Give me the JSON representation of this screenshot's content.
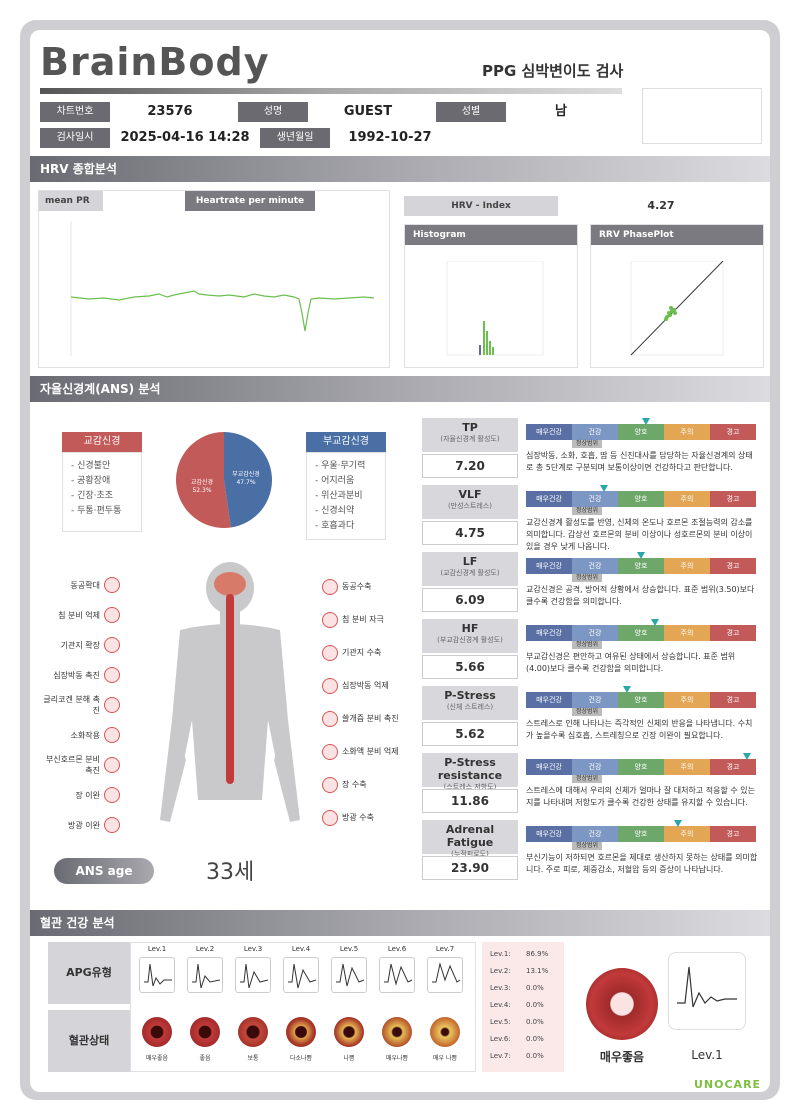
{
  "header": {
    "logo": "BrainBody",
    "title": "PPG 심박변이도 검사",
    "chart_no_label": "차트번호",
    "chart_no": "23576",
    "name_label": "성명",
    "name": "GUEST",
    "gender_label": "성별",
    "gender": "남",
    "date_label": "검사일시",
    "date": "2025-04-16 14:28",
    "birth_label": "생년월일",
    "birth": "1992-10-27"
  },
  "hrv": {
    "section": "HRV 종합분석",
    "mean_pr": "mean PR",
    "hr_per_min": "Heartrate per minute",
    "index_label": "HRV - Index",
    "index_value": "4.27",
    "histogram": "Histogram",
    "phaseplot": "RRV PhasePlot"
  },
  "ans": {
    "section": "자율신경계(ANS) 분석",
    "sym_label": "교감신경",
    "sym_items": [
      "- 신경불안",
      "- 공황장애",
      "- 긴장·초조",
      "- 두통·편두통"
    ],
    "para_label": "부교감신경",
    "para_items": [
      "- 우울·무기력",
      "- 어지러움",
      "- 위산과분비",
      "- 신경쇠약",
      "- 호흡과다"
    ],
    "pie": {
      "sym_name": "교감신경",
      "sym_pct": "52.3%",
      "para_name": "부교감신경",
      "para_pct": "47.7%",
      "sym_value": 52.3,
      "para_value": 47.7
    },
    "left_organs": [
      "동공확대",
      "침 분비 억제",
      "기관지 확장",
      "심장박동 촉진",
      "글리코겐 분해 촉진",
      "소화작용",
      "부신호르몬 분비 촉진",
      "장 이완",
      "방광 이완"
    ],
    "right_organs": [
      "동공수축",
      "침 분비 자극",
      "기관지 수축",
      "심장박동 억제",
      "쓸개즙 분비 촉진",
      "소화액 분비 억제",
      "장 수축",
      "방광 수축"
    ],
    "age_label": "ANS age",
    "age_value": "33세"
  },
  "scale_labels": [
    "매우건강",
    "건강",
    "양호",
    "주의",
    "경고"
  ],
  "normal_tag": "정상범위",
  "metrics": [
    {
      "name": "TP",
      "sub": "(자율신경계 활성도)",
      "value": "7.20",
      "marker": 0.52,
      "desc": "심장박동, 소화, 호흡, 땀 등 신진대사를 담당하는 자율신경계의 상태로 총 5단계로 구분되며 보통이상이면 건강하다고 판단합니다."
    },
    {
      "name": "VLF",
      "sub": "(만성스트레스)",
      "value": "4.75",
      "marker": 0.34,
      "desc": "교감신경계 활성도를 반영, 신체의 온도나 호르몬 조절능력의 감소를 의미합니다. 갑상선 호르몬의 분비 이상이나 성호르몬의 분비 이상이 있을 경우 낮게 나옵니다."
    },
    {
      "name": "LF",
      "sub": "(교감신경계 활성도)",
      "value": "6.09",
      "marker": 0.5,
      "desc": "교감신경은 공격, 방어적 상황에서 상승합니다. 표준 범위(3.50)보다 클수록 건강함을 의미합니다."
    },
    {
      "name": "HF",
      "sub": "(부교감신경계 활성도)",
      "value": "5.66",
      "marker": 0.56,
      "desc": "부교감신경은 편안하고 여유된 상태에서 상승합니다. 표준 범위(4.00)보다 클수록 건강함을 의미합니다."
    },
    {
      "name": "P-Stress",
      "sub": "(신체 스트레스)",
      "value": "5.62",
      "marker": 0.44,
      "desc": "스트레스로 인해 나타나는 즉각적인 신체의 반응을 나타냅니다. 수치가 높을수록 심호흡, 스트레칭으로 긴장 이완이 필요합니다."
    },
    {
      "name": "P-Stress resistance",
      "sub": "(스트레스 저항도)",
      "value": "11.86",
      "marker": 0.96,
      "desc": "스트레스에 대해서 우리의 신체가 얼마나 잘 대처하고 적응할 수 있는지를 나타내며 저항도가 클수록 건강한 상태를 유지할 수 있습니다."
    },
    {
      "name": "Adrenal Fatigue",
      "sub": "(누적피로도)",
      "value": "23.90",
      "marker": 0.66,
      "desc": "부신기능이 저하되면 호르몬을 제대로 생산하지 못하는 상태를 의미합니다. 주로 피로, 체중감소, 저혈압 등의 증상이 나타납니다."
    }
  ],
  "vascular": {
    "section": "혈관 건강 분석",
    "apg_type": "APG유형",
    "vessel_state": "혈관상태",
    "levels": [
      "Lev.1",
      "Lev.2",
      "Lev.3",
      "Lev.4",
      "Lev.5",
      "Lev.6",
      "Lev.7"
    ],
    "states": [
      "매우좋음",
      "좋음",
      "보통",
      "다소나쁨",
      "나쁨",
      "매우나쁨",
      "매우 나쁨"
    ],
    "lev_values": [
      {
        "lev": "Lev.1:",
        "val": "86.9%"
      },
      {
        "lev": "Lev.2:",
        "val": "13.1%"
      },
      {
        "lev": "Lev.3:",
        "val": "0.0%"
      },
      {
        "lev": "Lev.4:",
        "val": "0.0%"
      },
      {
        "lev": "Lev.5:",
        "val": "0.0%"
      },
      {
        "lev": "Lev.6:",
        "val": "0.0%"
      },
      {
        "lev": "Lev.7:",
        "val": "0.0%"
      }
    ],
    "result_state": "매우좋음",
    "result_level": "Lev.1"
  },
  "footer": {
    "brand": "UNOCARE"
  },
  "colors": {
    "sym": "#c25a5a",
    "para": "#4a6fa5",
    "wave": "#6bbf4e",
    "teal": "#2aa7a7"
  }
}
